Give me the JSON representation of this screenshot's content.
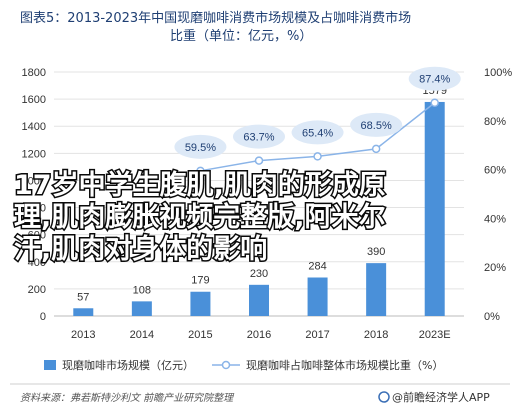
{
  "title": {
    "line1": "图表5：2013-2023年中国现磨咖啡消费市场规模及占咖啡消费市场",
    "line2": "比重（单位：亿元，%）"
  },
  "chart_data": {
    "type": "bar",
    "categories": [
      "2013",
      "2014",
      "2015",
      "2016",
      "2017",
      "2018",
      "2023E"
    ],
    "series": [
      {
        "name": "现磨咖啡市场规模（亿元）",
        "type": "bar",
        "axis": "left",
        "values": [
          57,
          108,
          179,
          230,
          284,
          390,
          1579
        ],
        "labels": [
          "57",
          "108",
          "179",
          "230",
          "284",
          "390",
          "1579"
        ]
      },
      {
        "name": "现磨咖啡占咖啡整体市场规模比重（%）",
        "type": "line",
        "axis": "right",
        "values": [
          null,
          null,
          59.5,
          63.7,
          65.4,
          68.5,
          87.4
        ],
        "labels": [
          "",
          "",
          "59.5%",
          "63.7%",
          "65.4%",
          "68.5%",
          "87.4%"
        ]
      }
    ],
    "left_axis": {
      "min": 0,
      "max": 1800,
      "step": 200,
      "ticks": [
        "0",
        "200",
        "400",
        "600",
        "800",
        "1000",
        "1200",
        "1400",
        "1600",
        "1800"
      ]
    },
    "right_axis": {
      "min": 0,
      "max": 100,
      "step": 20,
      "ticks": [
        "0%",
        "20%",
        "40%",
        "60%",
        "80%",
        "100%"
      ]
    },
    "grid": true,
    "legend_position": "bottom",
    "colors": {
      "bar": "#4a90d9",
      "line": "#8ab4e8",
      "bubble": "#dde9f7",
      "axis": "#cccccc"
    }
  },
  "overlay": {
    "line1": "17岁中学生腹肌,肌肉的形成原",
    "line2": "理,肌肉膨胀视频完整版,阿米尔",
    "line3": "汗,肌肉对身体的影响"
  },
  "footer": {
    "source": "资料来源：弗若斯特沙利文 前瞻产业研究院整理",
    "brand": "@前瞻经济学人APP"
  }
}
